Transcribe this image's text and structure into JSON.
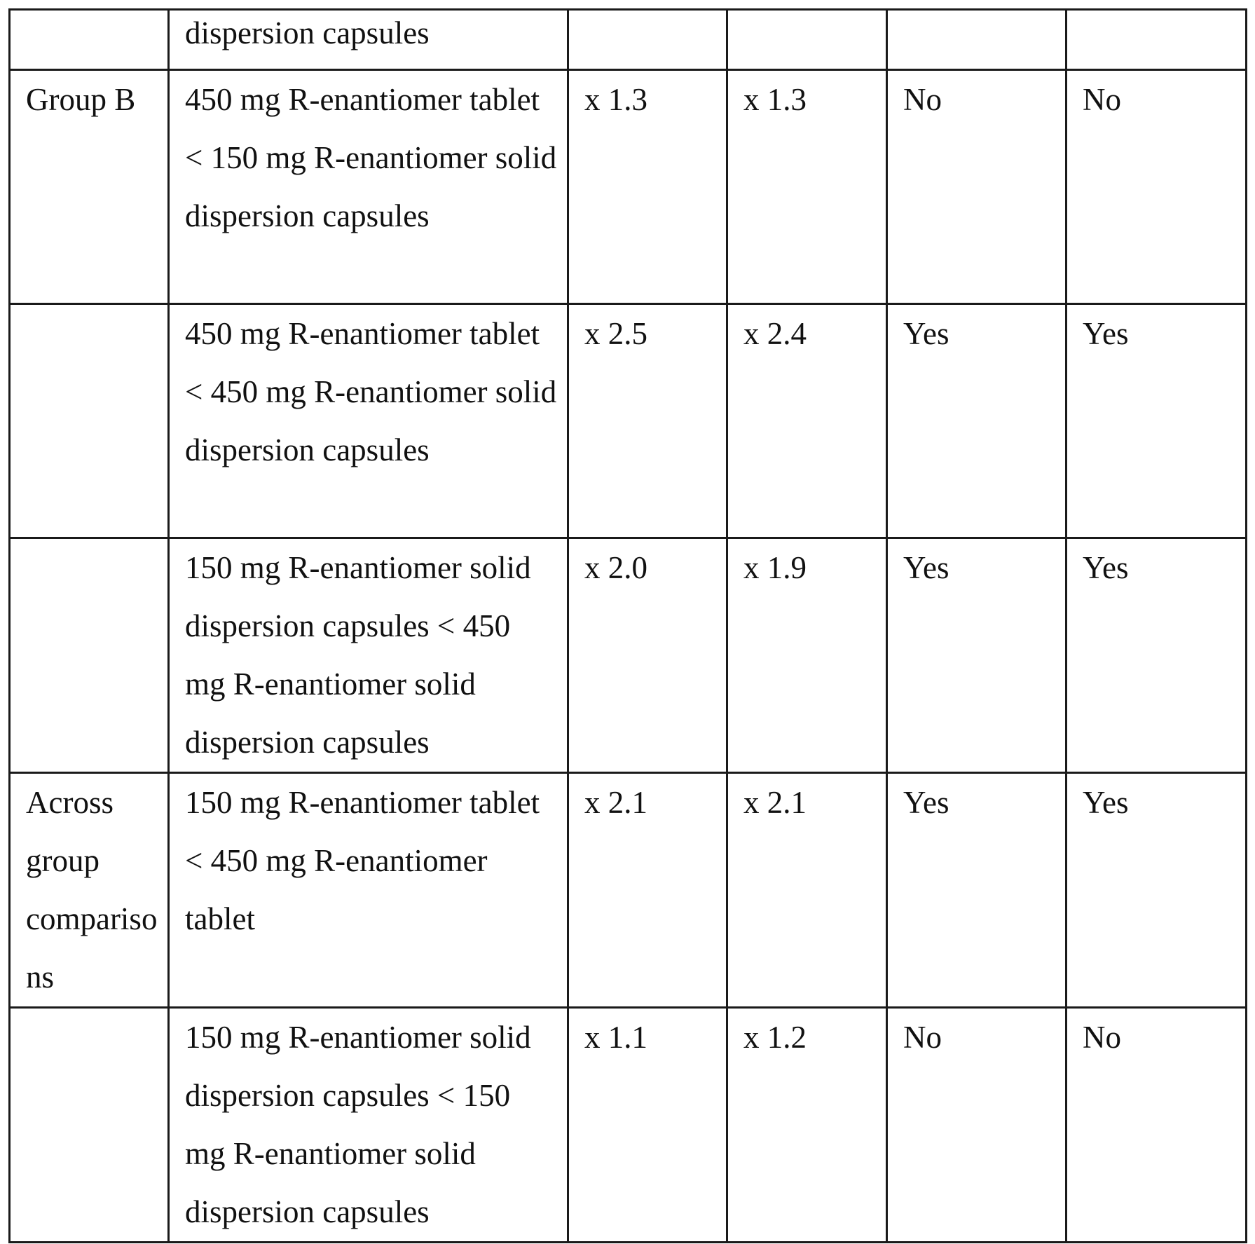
{
  "table": {
    "rows": [
      {
        "group": "",
        "comparison": "dispersion capsules",
        "ratio_1": "",
        "ratio_2": "",
        "sig_1": "",
        "sig_2": ""
      },
      {
        "group": "Group B",
        "comparison": "450 mg R-enantiomer tablet < 150 mg R-enantiomer solid dispersion capsules",
        "ratio_1": "x 1.3",
        "ratio_2": "x 1.3",
        "sig_1": "No",
        "sig_2": "No"
      },
      {
        "group": "",
        "comparison": "450 mg R-enantiomer tablet < 450 mg R-enantiomer solid dispersion capsules",
        "ratio_1": "x 2.5",
        "ratio_2": "x 2.4",
        "sig_1": "Yes",
        "sig_2": "Yes"
      },
      {
        "group": "",
        "comparison": "150 mg R-enantiomer solid dispersion capsules < 450 mg R-enantiomer solid dispersion capsules",
        "ratio_1": "x 2.0",
        "ratio_2": "x 1.9",
        "sig_1": "Yes",
        "sig_2": "Yes"
      },
      {
        "group": "Across group comparisons",
        "comparison": "150 mg R-enantiomer tablet < 450 mg R-enantiomer tablet",
        "ratio_1": "x 2.1",
        "ratio_2": "x 2.1",
        "sig_1": "Yes",
        "sig_2": "Yes"
      },
      {
        "group": "",
        "comparison": "150 mg R-enantiomer solid dispersion capsules < 150 mg R-enantiomer solid dispersion capsules",
        "ratio_1": "x 1.1",
        "ratio_2": "x 1.2",
        "sig_1": "No",
        "sig_2": "No"
      }
    ]
  }
}
